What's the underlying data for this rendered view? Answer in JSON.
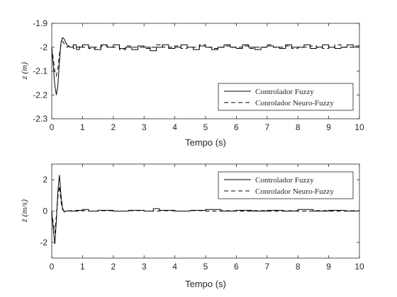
{
  "chart_data": [
    {
      "type": "line",
      "xlabel": "Tempo (s)",
      "ylabel": "z (m)",
      "xlim": [
        0,
        10
      ],
      "ylim": [
        -2.3,
        -1.9
      ],
      "xticks": [
        "0",
        "1",
        "2",
        "3",
        "4",
        "5",
        "6",
        "7",
        "8",
        "9",
        "10"
      ],
      "yticks": [
        "-2.3",
        "-2.2",
        "-2.1",
        "-2",
        "-1.9"
      ],
      "grid": false,
      "legend_position": "bottom-right",
      "series": [
        {
          "name": "Controlador Fuzzy",
          "style": "solid",
          "color": "#000000",
          "x": [
            0,
            0.05,
            0.1,
            0.15,
            0.2,
            0.25,
            0.3,
            0.35,
            0.4,
            0.45,
            0.5,
            0.6,
            0.7,
            0.8,
            0.9,
            1.0,
            1.2,
            1.4,
            1.6,
            1.8,
            2.0,
            2.2,
            2.4,
            2.6,
            2.8,
            3.0,
            3.2,
            3.4,
            3.6,
            3.8,
            4.0,
            4.2,
            4.4,
            4.6,
            4.8,
            5.0,
            5.2,
            5.4,
            5.6,
            5.8,
            6.0,
            6.2,
            6.4,
            6.6,
            6.8,
            7.0,
            7.2,
            7.4,
            7.6,
            7.8,
            8.0,
            8.2,
            8.4,
            8.6,
            8.8,
            9.0,
            9.2,
            9.4,
            9.6,
            9.8,
            10.0
          ],
          "y": [
            -2.0,
            -2.08,
            -2.16,
            -2.2,
            -2.16,
            -2.06,
            -1.98,
            -1.96,
            -1.965,
            -1.98,
            -1.99,
            -2.0,
            -1.99,
            -2.01,
            -2.0,
            -1.99,
            -2.0,
            -2.01,
            -1.99,
            -2.0,
            -1.99,
            -2.005,
            -2.0,
            -2.01,
            -1.995,
            -2.0,
            -2.015,
            -2.0,
            -1.99,
            -2.005,
            -2.0,
            -1.99,
            -2.0,
            -2.01,
            -1.995,
            -2.0,
            -2.01,
            -2.0,
            -1.99,
            -2.0,
            -2.005,
            -1.99,
            -2.0,
            -2.01,
            -2.0,
            -1.995,
            -2.0,
            -2.005,
            -1.99,
            -2.0,
            -2.0,
            -1.99,
            -2.005,
            -2.0,
            -1.99,
            -2.0,
            -2.005,
            -2.0,
            -1.99,
            -2.0,
            -2.0
          ]
        },
        {
          "name": "Conrolador Neuro-Fuzzy",
          "style": "dashed",
          "color": "#000000",
          "x": [
            0,
            0.05,
            0.1,
            0.15,
            0.2,
            0.25,
            0.3,
            0.35,
            0.4,
            0.45,
            0.5,
            0.6,
            0.7,
            0.8,
            0.9,
            1.0,
            1.2,
            1.4,
            1.6,
            1.8,
            2.0,
            2.2,
            2.4,
            2.6,
            2.8,
            3.0,
            3.2,
            3.4,
            3.6,
            3.8,
            4.0,
            4.2,
            4.4,
            4.6,
            4.8,
            5.0,
            5.2,
            5.4,
            5.6,
            5.8,
            6.0,
            6.2,
            6.4,
            6.6,
            6.8,
            7.0,
            7.2,
            7.4,
            7.6,
            7.8,
            8.0,
            8.2,
            8.4,
            8.6,
            8.8,
            9.0,
            9.2,
            9.4,
            9.6,
            9.8,
            10.0
          ],
          "y": [
            -2.0,
            -2.05,
            -2.1,
            -2.12,
            -2.09,
            -2.03,
            -1.99,
            -1.975,
            -1.985,
            -1.99,
            -2.0,
            -1.995,
            -2.005,
            -2.0,
            -1.995,
            -2.0,
            -2.005,
            -2.0,
            -1.995,
            -2.0,
            -2.0,
            -2.01,
            -1.995,
            -2.0,
            -2.0,
            -2.005,
            -2.0,
            -1.99,
            -2.0,
            -2.0,
            -1.995,
            -2.005,
            -2.0,
            -2.0,
            -1.99,
            -2.0,
            -2.005,
            -2.0,
            -1.995,
            -2.0,
            -2.0,
            -1.995,
            -2.005,
            -2.0,
            -2.0,
            -1.99,
            -2.0,
            -2.0,
            -1.995,
            -2.005,
            -2.0,
            -2.0,
            -1.995,
            -2.0,
            -2.005,
            -2.0,
            -1.99,
            -2.0,
            -2.0,
            -1.995,
            -2.0
          ]
        }
      ]
    },
    {
      "type": "line",
      "xlabel": "Tempo (s)",
      "ylabel": "ż (m/s)",
      "xlim": [
        0,
        10
      ],
      "ylim": [
        -3,
        3
      ],
      "xticks": [
        "0",
        "1",
        "2",
        "3",
        "4",
        "5",
        "6",
        "7",
        "8",
        "9",
        "10"
      ],
      "yticks": [
        "-2",
        "0",
        "2"
      ],
      "grid": false,
      "legend_position": "top-right",
      "series": [
        {
          "name": "Controlador Fuzzy",
          "style": "solid",
          "color": "#000000",
          "x": [
            0,
            0.05,
            0.1,
            0.15,
            0.2,
            0.25,
            0.3,
            0.35,
            0.4,
            0.45,
            0.5,
            0.6,
            0.8,
            1.0,
            1.2,
            1.5,
            2.0,
            2.5,
            3.0,
            3.3,
            3.5,
            4.0,
            4.5,
            5.0,
            5.5,
            6.0,
            6.5,
            7.0,
            7.5,
            8.0,
            8.5,
            9.0,
            9.5,
            10.0
          ],
          "y": [
            0,
            -1.2,
            -2.1,
            -0.6,
            1.3,
            2.3,
            1.0,
            0.2,
            -0.05,
            -0.02,
            0.02,
            0.0,
            0.05,
            0.1,
            0.0,
            0.05,
            0.0,
            0.05,
            0.0,
            0.15,
            0.05,
            0.0,
            0.05,
            0.1,
            0.0,
            0.05,
            0.0,
            0.05,
            0.0,
            0.1,
            0.0,
            0.05,
            0.0,
            0.0
          ]
        },
        {
          "name": "Conrolador Neuro-Fuzzy",
          "style": "dashed",
          "color": "#000000",
          "x": [
            0,
            0.05,
            0.1,
            0.15,
            0.2,
            0.25,
            0.3,
            0.35,
            0.4,
            0.45,
            0.5,
            0.6,
            0.8,
            1.0,
            1.2,
            1.5,
            2.0,
            2.5,
            3.0,
            3.5,
            4.0,
            4.5,
            5.0,
            5.5,
            6.0,
            6.5,
            7.0,
            7.5,
            8.0,
            8.5,
            9.0,
            9.5,
            10.0
          ],
          "y": [
            0,
            -0.8,
            -1.4,
            -0.3,
            0.9,
            1.6,
            0.6,
            0.1,
            0.0,
            0.0,
            0.0,
            0.02,
            0.0,
            0.03,
            0.0,
            0.02,
            0.0,
            0.03,
            0.0,
            0.02,
            0.0,
            0.03,
            0.0,
            0.02,
            0.0,
            0.03,
            0.0,
            0.02,
            0.0,
            0.03,
            0.0,
            0.02,
            0.0
          ]
        }
      ]
    }
  ]
}
